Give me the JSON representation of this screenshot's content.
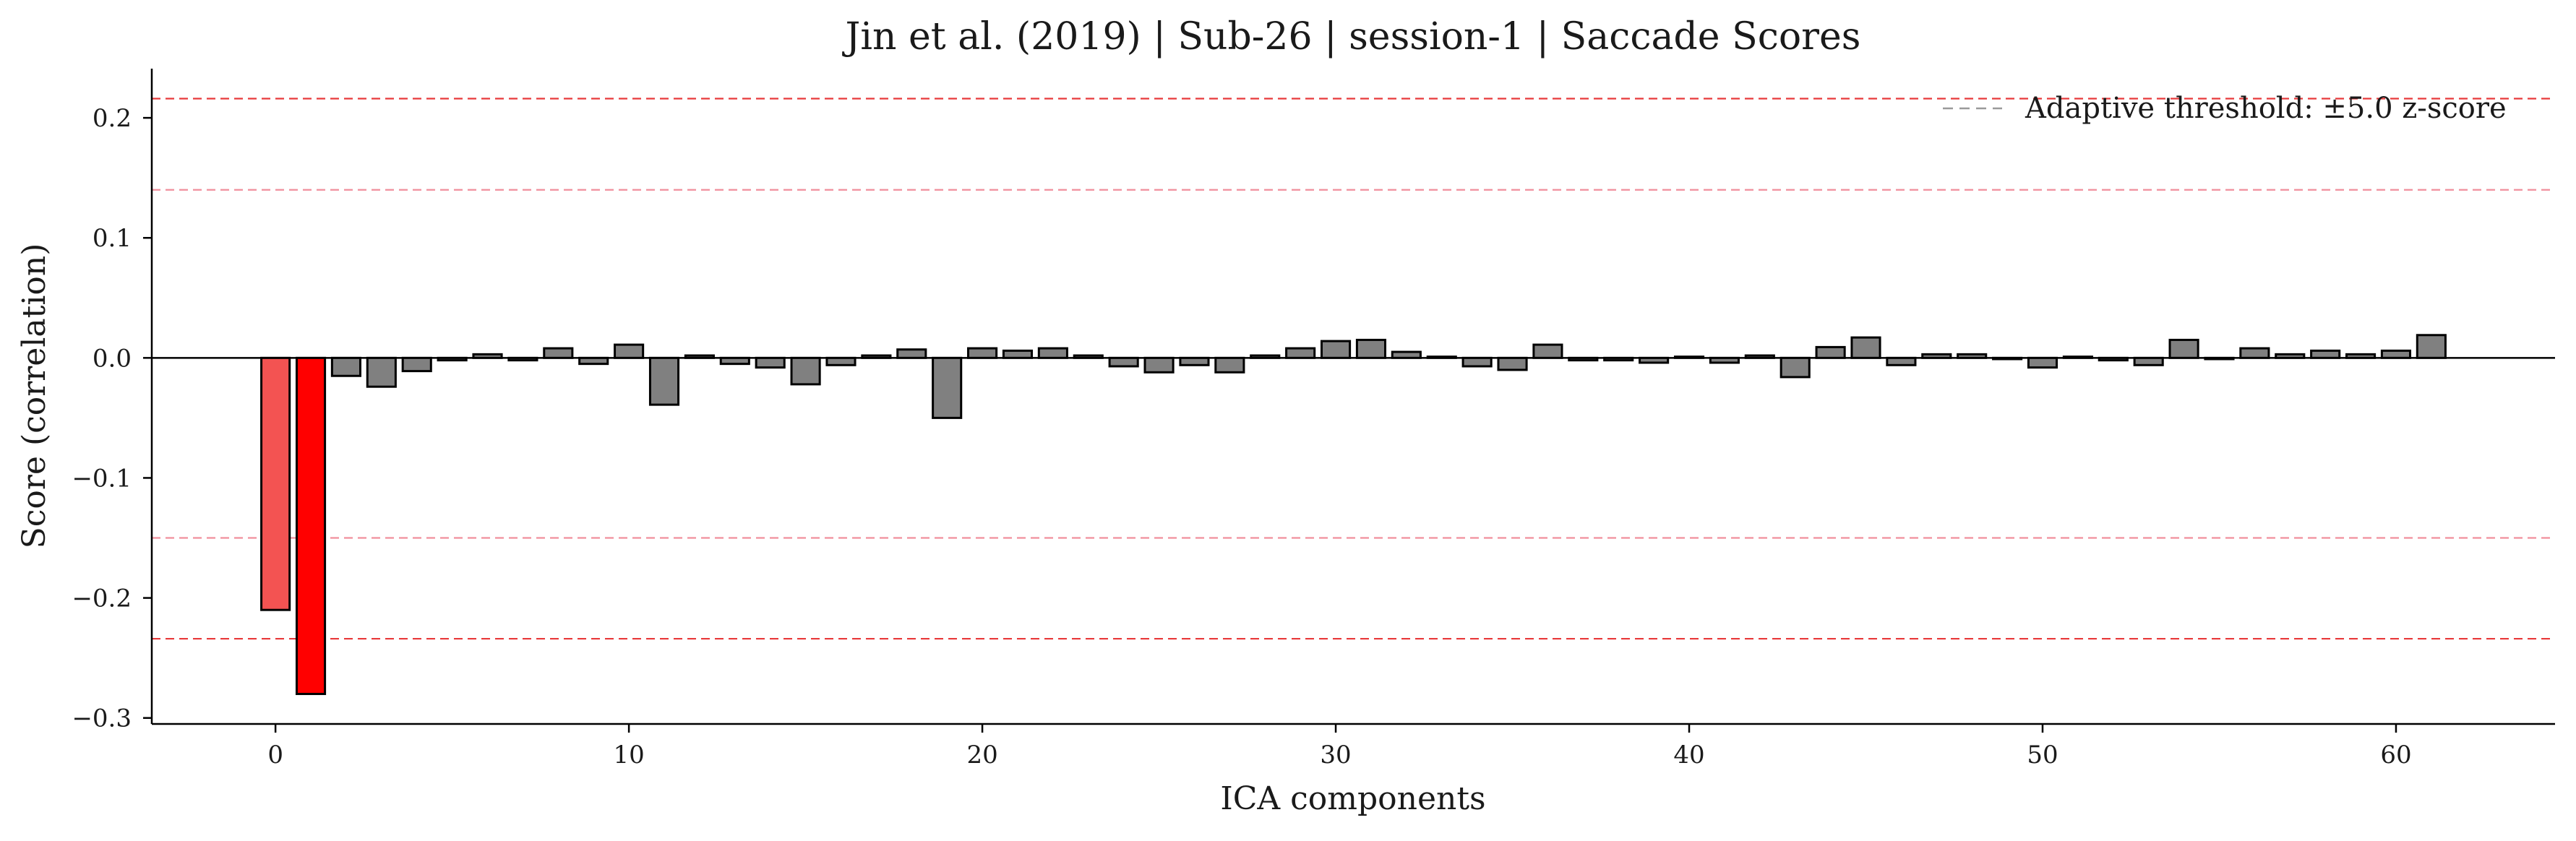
{
  "chart_data": {
    "type": "bar",
    "title": "Jin et al. (2019) | Sub-26 | session-1 | Saccade Scores",
    "xlabel": "ICA components",
    "ylabel": "Score (correlation)",
    "xlim": [
      -3.5,
      64.5
    ],
    "ylim": [
      -0.305,
      0.241
    ],
    "xticks": [
      0,
      10,
      20,
      30,
      40,
      50,
      60
    ],
    "xtick_labels": [
      "0",
      "10",
      "20",
      "30",
      "40",
      "50",
      "60"
    ],
    "yticks": [
      -0.3,
      -0.2,
      -0.1,
      0.0,
      0.1,
      0.2
    ],
    "ytick_labels": [
      "−0.3",
      "−0.2",
      "−0.1",
      "0.0",
      "0.1",
      "0.2"
    ],
    "grid": false,
    "legend": {
      "placement": "top-right",
      "label": "Adaptive threshold: ±5.0 z-score",
      "line_color": "#9a9a9a"
    },
    "threshold_lines": [
      {
        "y": 0.216,
        "color": "#e8393a",
        "name": "outer-upper"
      },
      {
        "y": 0.14,
        "color": "#f08f9c",
        "name": "inner-upper"
      },
      {
        "y": -0.15,
        "color": "#f08f9c",
        "name": "inner-lower"
      },
      {
        "y": -0.234,
        "color": "#e8393a",
        "name": "outer-lower"
      }
    ],
    "colors": {
      "default_bar": "#808080",
      "bar_edge": "#000000",
      "flagged_bars": {
        "0": "#f35352",
        "1": "#ff0000"
      },
      "zero_line": "#000000"
    },
    "categories": [
      0,
      1,
      2,
      3,
      4,
      5,
      6,
      7,
      8,
      9,
      10,
      11,
      12,
      13,
      14,
      15,
      16,
      17,
      18,
      19,
      20,
      21,
      22,
      23,
      24,
      25,
      26,
      27,
      28,
      29,
      30,
      31,
      32,
      33,
      34,
      35,
      36,
      37,
      38,
      39,
      40,
      41,
      42,
      43,
      44,
      45,
      46,
      47,
      48,
      49,
      50,
      51,
      52,
      53,
      54,
      55,
      56,
      57,
      58,
      59,
      60,
      61
    ],
    "values": [
      -0.21,
      -0.28,
      -0.015,
      -0.024,
      -0.011,
      -0.002,
      0.003,
      -0.002,
      0.008,
      -0.005,
      0.011,
      -0.039,
      0.002,
      -0.005,
      -0.008,
      -0.022,
      -0.006,
      0.002,
      0.007,
      -0.05,
      0.008,
      0.006,
      0.008,
      0.002,
      -0.007,
      -0.012,
      -0.006,
      -0.012,
      0.002,
      0.008,
      0.014,
      0.015,
      0.005,
      0.001,
      -0.007,
      -0.01,
      0.011,
      -0.002,
      -0.002,
      -0.004,
      0.001,
      -0.004,
      0.002,
      -0.016,
      0.009,
      0.017,
      -0.006,
      0.003,
      0.003,
      -0.001,
      -0.008,
      0.001,
      -0.002,
      -0.006,
      0.015,
      -0.001,
      0.008,
      0.003,
      0.006,
      0.003,
      0.006,
      0.019
    ]
  }
}
